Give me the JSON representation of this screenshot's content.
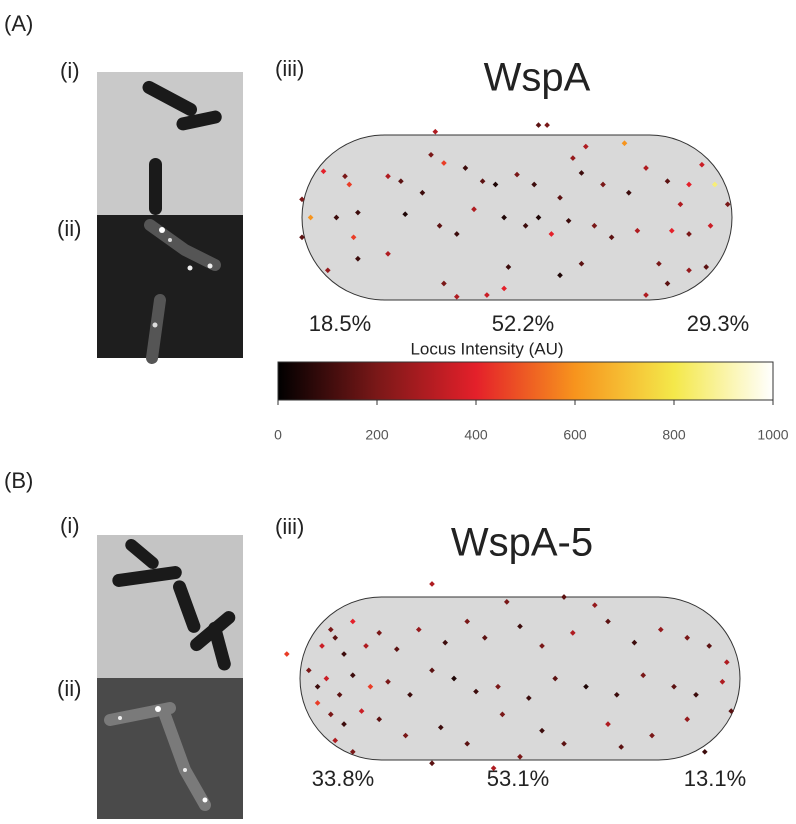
{
  "panels": [
    {
      "label": "(A)",
      "sub_i": "(i)",
      "sub_ii": "(ii)",
      "sub_iii": "(iii)",
      "title": "WspA",
      "percentages": [
        "18.5%",
        "52.2%",
        "29.3%"
      ],
      "points": {
        "x": [
          0.31,
          0.55,
          0.57,
          0.75,
          0.66,
          0.05,
          0.1,
          0.11,
          0.2,
          0.23,
          0.28,
          0.3,
          0.33,
          0.38,
          0.42,
          0.45,
          0.5,
          0.54,
          0.6,
          0.63,
          0.65,
          0.7,
          0.76,
          0.8,
          0.85,
          0.9,
          0.93,
          0.96,
          0.99,
          0.88,
          0.0,
          0.02,
          0.08,
          0.12,
          0.13,
          0.24,
          0.32,
          0.36,
          0.4,
          0.47,
          0.52,
          0.55,
          0.58,
          0.62,
          0.68,
          0.72,
          0.78,
          0.86,
          0.9,
          0.95,
          0.0,
          0.06,
          0.13,
          0.2,
          0.33,
          0.36,
          0.43,
          0.47,
          0.48,
          0.6,
          0.65,
          0.83,
          0.85,
          0.8,
          0.9,
          0.94
        ],
        "y": [
          -0.02,
          -0.06,
          -0.06,
          0.05,
          0.07,
          0.22,
          0.25,
          0.3,
          0.25,
          0.28,
          0.35,
          0.12,
          0.17,
          0.2,
          0.28,
          0.3,
          0.24,
          0.3,
          0.38,
          0.14,
          0.23,
          0.3,
          0.35,
          0.2,
          0.28,
          0.3,
          0.18,
          0.3,
          0.42,
          0.42,
          0.39,
          0.5,
          0.5,
          0.62,
          0.47,
          0.48,
          0.55,
          0.6,
          0.45,
          0.5,
          0.55,
          0.5,
          0.6,
          0.52,
          0.55,
          0.62,
          0.58,
          0.58,
          0.6,
          0.55,
          0.62,
          0.82,
          0.75,
          0.72,
          0.9,
          0.98,
          0.97,
          0.93,
          0.8,
          0.85,
          0.78,
          0.78,
          0.9,
          0.97,
          0.82,
          0.8
        ],
        "intensity": [
          300,
          150,
          200,
          600,
          300,
          400,
          200,
          450,
          300,
          150,
          100,
          200,
          450,
          100,
          150,
          50,
          200,
          100,
          150,
          250,
          100,
          200,
          100,
          300,
          150,
          400,
          350,
          850,
          200,
          300,
          200,
          600,
          100,
          450,
          100,
          50,
          150,
          100,
          300,
          50,
          100,
          50,
          400,
          100,
          200,
          150,
          300,
          400,
          200,
          350,
          150,
          250,
          100,
          300,
          200,
          300,
          350,
          400,
          100,
          50,
          150,
          200,
          150,
          300,
          250,
          150
        ]
      }
    },
    {
      "label": "(B)",
      "sub_i": "(i)",
      "sub_ii": "(ii)",
      "sub_iii": "(iii)",
      "title": "WspA-5",
      "percentages": [
        "33.8%",
        "53.1%",
        "13.1%"
      ],
      "points": {
        "x": [
          0.3,
          0.47,
          0.6,
          0.67,
          0.12,
          0.07,
          0.05,
          0.08,
          0.1,
          0.15,
          0.18,
          0.22,
          0.27,
          0.33,
          0.38,
          0.42,
          0.5,
          0.55,
          0.62,
          0.7,
          0.76,
          0.82,
          0.88,
          0.93,
          0.97,
          -0.03,
          0.02,
          0.04,
          0.06,
          0.09,
          0.12,
          0.16,
          0.2,
          0.25,
          0.3,
          0.35,
          0.4,
          0.45,
          0.52,
          0.58,
          0.65,
          0.72,
          0.78,
          0.85,
          0.9,
          0.96,
          0.04,
          0.07,
          0.1,
          0.14,
          0.18,
          0.24,
          0.32,
          0.38,
          0.46,
          0.55,
          0.6,
          0.7,
          0.8,
          0.88,
          0.98,
          0.08,
          0.12,
          0.3,
          0.44,
          0.5,
          0.73,
          0.92
        ],
        "y": [
          -0.08,
          0.03,
          0.0,
          0.05,
          0.15,
          0.2,
          0.3,
          0.25,
          0.35,
          0.3,
          0.22,
          0.32,
          0.2,
          0.28,
          0.15,
          0.25,
          0.18,
          0.3,
          0.22,
          0.15,
          0.28,
          0.2,
          0.25,
          0.3,
          0.4,
          0.35,
          0.45,
          0.55,
          0.5,
          0.6,
          0.48,
          0.55,
          0.52,
          0.6,
          0.45,
          0.5,
          0.58,
          0.55,
          0.62,
          0.5,
          0.55,
          0.6,
          0.48,
          0.55,
          0.6,
          0.52,
          0.65,
          0.72,
          0.78,
          0.7,
          0.75,
          0.85,
          0.8,
          0.9,
          0.72,
          0.82,
          0.9,
          0.78,
          0.85,
          0.75,
          0.7,
          0.88,
          0.95,
          1.02,
          1.05,
          0.98,
          0.92,
          0.95
        ],
        "intensity": [
          300,
          200,
          150,
          250,
          400,
          200,
          350,
          150,
          100,
          300,
          200,
          150,
          250,
          100,
          200,
          150,
          100,
          200,
          300,
          150,
          100,
          250,
          200,
          150,
          300,
          450,
          200,
          100,
          350,
          150,
          100,
          450,
          200,
          100,
          150,
          50,
          100,
          200,
          100,
          150,
          50,
          100,
          200,
          150,
          100,
          300,
          450,
          200,
          100,
          350,
          150,
          200,
          100,
          150,
          200,
          100,
          150,
          300,
          200,
          250,
          150,
          300,
          200,
          150,
          300,
          200,
          150,
          100
        ]
      }
    }
  ],
  "colorbar": {
    "label": "Locus Intensity (AU)",
    "lim": [
      0,
      1000
    ],
    "ticks": [
      0,
      200,
      400,
      600,
      800,
      1000
    ],
    "colormap": [
      "#000000",
      "#7a1818",
      "#e4202a",
      "#f7941d",
      "#f4e84a",
      "#ffffff"
    ]
  }
}
